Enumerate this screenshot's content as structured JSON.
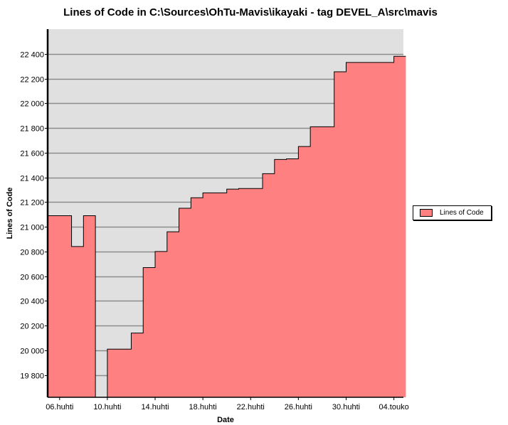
{
  "chart_data": {
    "type": "area",
    "title": "Lines of Code in C:\\Sources\\OhTu-Mavis\\ikayaki - tag DEVEL_A\\src\\mavis",
    "xlabel": "Date",
    "ylabel": "Lines of Code",
    "x_tick_labels": [
      "06.huhti",
      "10.huhti",
      "14.huhti",
      "18.huhti",
      "22.huhti",
      "26.huhti",
      "30.huhti",
      "04.touko"
    ],
    "y_ticks": [
      19800,
      20000,
      20200,
      20400,
      20600,
      20800,
      21000,
      21200,
      21400,
      21600,
      21800,
      22000,
      22200,
      22400
    ],
    "y_tick_labels": [
      "19 800",
      "20 000",
      "20 200",
      "20 400",
      "20 600",
      "20 800",
      "21 000",
      "21 200",
      "21 400",
      "21 600",
      "21 800",
      "22 000",
      "22 200",
      "22 400"
    ],
    "ylim": [
      19620,
      22600
    ],
    "grid": true,
    "legend_position": "right",
    "series": [
      {
        "name": "Lines of Code",
        "color": "#ff8080",
        "step": true,
        "points": [
          [
            "05.huhti",
            21090
          ],
          [
            "07.huhti",
            20840
          ],
          [
            "08.huhti",
            21090
          ],
          [
            "09.huhti",
            19620
          ],
          [
            "10.huhti",
            20010
          ],
          [
            "12.huhti",
            20140
          ],
          [
            "13.huhti",
            20670
          ],
          [
            "14.huhti",
            20800
          ],
          [
            "15.huhti",
            20960
          ],
          [
            "16.huhti",
            21150
          ],
          [
            "17.huhti",
            21235
          ],
          [
            "18.huhti",
            21275
          ],
          [
            "20.huhti",
            21305
          ],
          [
            "21.huhti",
            21310
          ],
          [
            "23.huhti",
            21430
          ],
          [
            "24.huhti",
            21545
          ],
          [
            "25.huhti",
            21550
          ],
          [
            "26.huhti",
            21650
          ],
          [
            "27.huhti",
            21810
          ],
          [
            "29.huhti",
            22255
          ],
          [
            "30.huhti",
            22330
          ],
          [
            "04.touko",
            22380
          ]
        ],
        "end": "05.touko"
      }
    ]
  }
}
